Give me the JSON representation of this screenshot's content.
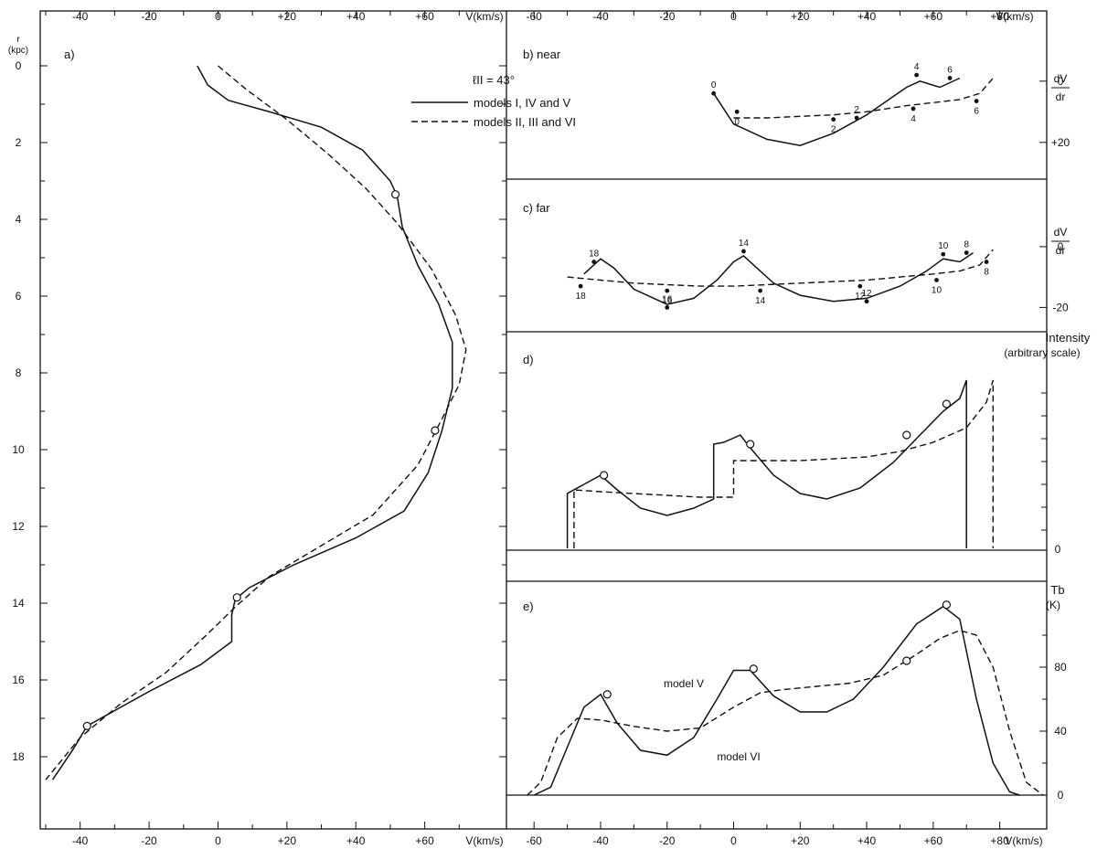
{
  "chart_data": [
    {
      "panel": "a",
      "type": "line",
      "label": "a)",
      "xlabel": "V(km/s)",
      "ylabel": "r",
      "ylabel_unit": "(kpc)",
      "xlim": [
        -50,
        80
      ],
      "ylim": [
        0,
        19
      ],
      "x_ticks_bottom": [
        "-40",
        "-20",
        "0",
        "+20",
        "+40",
        "+60"
      ],
      "x_ticks_top": [
        "-40",
        "-20",
        "0",
        "+20",
        "+40",
        "+60"
      ],
      "y_ticks": [
        "0",
        "2",
        "4",
        "6",
        "8",
        "10",
        "12",
        "14",
        "16",
        "18"
      ],
      "annotation_longitude": "ℓII = 43°",
      "legend": [
        {
          "label": "models I, IV and V",
          "style": "solid"
        },
        {
          "label": "models II, III and VI",
          "style": "dashed"
        }
      ],
      "series": [
        {
          "name": "models I, IV and V",
          "style": "solid",
          "points": [
            [
              -6,
              0.0
            ],
            [
              -3,
              0.5
            ],
            [
              3,
              0.9
            ],
            [
              15,
              1.2
            ],
            [
              30,
              1.6
            ],
            [
              42,
              2.2
            ],
            [
              50,
              3.0
            ],
            [
              52,
              3.4
            ],
            [
              53.5,
              4.2
            ],
            [
              58,
              5.2
            ],
            [
              64,
              6.2
            ],
            [
              68,
              7.2
            ],
            [
              68,
              8.4
            ],
            [
              65,
              9.5
            ],
            [
              61,
              10.6
            ],
            [
              54,
              11.6
            ],
            [
              40,
              12.3
            ],
            [
              22,
              13.0
            ],
            [
              9,
              13.6
            ],
            [
              5,
              13.9
            ],
            [
              4,
              14.3
            ],
            [
              4,
              15.0
            ],
            [
              -5,
              15.6
            ],
            [
              -20,
              16.3
            ],
            [
              -32,
              16.9
            ],
            [
              -38,
              17.2
            ],
            [
              -42,
              17.8
            ],
            [
              -48,
              18.6
            ]
          ]
        },
        {
          "name": "models II, III and VI",
          "style": "dashed",
          "points": [
            [
              0,
              0.0
            ],
            [
              8,
              0.6
            ],
            [
              20,
              1.4
            ],
            [
              32,
              2.3
            ],
            [
              43,
              3.2
            ],
            [
              52,
              4.1
            ],
            [
              62,
              5.3
            ],
            [
              69,
              6.5
            ],
            [
              72,
              7.4
            ],
            [
              70,
              8.3
            ],
            [
              65,
              9.2
            ],
            [
              58,
              10.4
            ],
            [
              45,
              11.7
            ],
            [
              30,
              12.5
            ],
            [
              15,
              13.3
            ],
            [
              5,
              14.1
            ],
            [
              -3,
              14.8
            ],
            [
              -15,
              15.8
            ],
            [
              -28,
              16.6
            ],
            [
              -40,
              17.5
            ],
            [
              -50,
              18.6
            ]
          ]
        }
      ],
      "markers": [
        [
          51.5,
          3.35
        ],
        [
          63,
          9.5
        ],
        [
          5.5,
          13.85
        ],
        [
          -38,
          17.2
        ]
      ]
    },
    {
      "panel": "b",
      "type": "line",
      "label": "b)  near",
      "ylabel": "dV/dr",
      "xlim": [
        -65,
        90
      ],
      "ylim": [
        -8,
        32
      ],
      "y_ticks_right": [
        "0",
        "+20"
      ],
      "series": [
        {
          "name": "models I, IV and V",
          "style": "solid",
          "points": [
            [
              -6,
              4
            ],
            [
              0,
              14
            ],
            [
              10,
              19
            ],
            [
              20,
              21
            ],
            [
              30,
              17
            ],
            [
              40,
              11
            ],
            [
              48,
              5
            ],
            [
              52,
              2
            ],
            [
              56,
              0
            ],
            [
              62,
              2
            ],
            [
              68,
              -1
            ]
          ],
          "labels": [
            {
              "text": "0",
              "x": -6,
              "y": 4
            },
            {
              "text": "2",
              "x": 37,
              "y": 12
            },
            {
              "text": "4",
              "x": 55,
              "y": -2
            },
            {
              "text": "6",
              "x": 65,
              "y": -1
            }
          ]
        },
        {
          "name": "models II, III and VI",
          "style": "dashed",
          "points": [
            [
              0,
              12
            ],
            [
              10,
              12
            ],
            [
              20,
              11.5
            ],
            [
              30,
              11
            ],
            [
              40,
              10
            ],
            [
              52,
              8
            ],
            [
              60,
              7
            ],
            [
              68,
              6
            ],
            [
              74,
              4
            ],
            [
              78,
              -1
            ]
          ],
          "labels": [
            {
              "text": "0",
              "x": 1,
              "y": 10
            },
            {
              "text": "2",
              "x": 30,
              "y": 12.5
            },
            {
              "text": "4",
              "x": 54,
              "y": 9
            },
            {
              "text": "6",
              "x": 73,
              "y": 6.5
            }
          ]
        }
      ]
    },
    {
      "panel": "c",
      "type": "line",
      "label": "c)  far",
      "ylabel": "dV/dr",
      "xlim": [
        -65,
        90
      ],
      "ylim": [
        -12,
        28
      ],
      "y_ticks_right": [
        "0",
        "-20"
      ],
      "series": [
        {
          "name": "models I, IV and V",
          "style": "solid",
          "points": [
            [
              -45,
              9
            ],
            [
              -40,
              4
            ],
            [
              -36,
              7
            ],
            [
              -30,
              14
            ],
            [
              -20,
              19
            ],
            [
              -12,
              17
            ],
            [
              -5,
              11
            ],
            [
              0,
              5
            ],
            [
              3,
              3
            ],
            [
              6,
              6
            ],
            [
              12,
              12
            ],
            [
              20,
              16
            ],
            [
              30,
              18
            ],
            [
              40,
              17
            ],
            [
              50,
              13
            ],
            [
              58,
              8
            ],
            [
              63,
              4
            ],
            [
              68,
              5
            ],
            [
              72,
              2
            ]
          ],
          "labels": [
            {
              "text": "18",
              "x": -42,
              "y": 5
            },
            {
              "text": "16",
              "x": -20,
              "y": 20
            },
            {
              "text": "14",
              "x": 3,
              "y": 1.5
            },
            {
              "text": "12",
              "x": 40,
              "y": 18
            },
            {
              "text": "10",
              "x": 63,
              "y": 2.5
            },
            {
              "text": "8",
              "x": 70,
              "y": 2
            }
          ]
        },
        {
          "name": "models II, III and VI",
          "style": "dashed",
          "points": [
            [
              -50,
              10
            ],
            [
              -40,
              11
            ],
            [
              -30,
              12
            ],
            [
              -20,
              12.5
            ],
            [
              -10,
              13
            ],
            [
              0,
              13
            ],
            [
              10,
              12.5
            ],
            [
              20,
              12
            ],
            [
              30,
              11.5
            ],
            [
              40,
              11
            ],
            [
              50,
              10
            ],
            [
              60,
              9
            ],
            [
              68,
              8
            ],
            [
              74,
              6
            ],
            [
              78,
              1
            ]
          ],
          "labels": [
            {
              "text": "18",
              "x": -46,
              "y": 13
            },
            {
              "text": "16",
              "x": -20,
              "y": 14.5
            },
            {
              "text": "14",
              "x": 8,
              "y": 14.5
            },
            {
              "text": "12",
              "x": 38,
              "y": 13
            },
            {
              "text": "10",
              "x": 61,
              "y": 11
            },
            {
              "text": "8",
              "x": 76,
              "y": 5
            }
          ]
        }
      ]
    },
    {
      "panel": "d",
      "type": "line",
      "label": "d)",
      "ylabel": "Intensity",
      "ylabel_unit": "(arbitrary scale)",
      "xlim": [
        -65,
        90
      ],
      "ylim": [
        0,
        100
      ],
      "y_ticks_right": [
        "0"
      ],
      "series": [
        {
          "name": "models I, IV and V",
          "style": "solid",
          "points": [
            [
              -50,
              0
            ],
            [
              -50,
              30
            ],
            [
              -45,
              35
            ],
            [
              -40,
              40
            ],
            [
              -35,
              32
            ],
            [
              -28,
              22
            ],
            [
              -20,
              18
            ],
            [
              -12,
              22
            ],
            [
              -6,
              27
            ],
            [
              -6,
              57
            ],
            [
              -3,
              58
            ],
            [
              2,
              62
            ],
            [
              5,
              55
            ],
            [
              12,
              40
            ],
            [
              20,
              30
            ],
            [
              28,
              27
            ],
            [
              38,
              33
            ],
            [
              48,
              47
            ],
            [
              56,
              62
            ],
            [
              63,
              75
            ],
            [
              68,
              82
            ],
            [
              70,
              92
            ],
            [
              70,
              0
            ]
          ]
        },
        {
          "name": "models II, III and VI",
          "style": "dashed",
          "points": [
            [
              -48,
              0
            ],
            [
              -48,
              32
            ],
            [
              -40,
              31
            ],
            [
              -30,
              30
            ],
            [
              -20,
              29
            ],
            [
              -10,
              28
            ],
            [
              0,
              28
            ],
            [
              0,
              48
            ],
            [
              10,
              48
            ],
            [
              20,
              48
            ],
            [
              30,
              49
            ],
            [
              40,
              50
            ],
            [
              50,
              53
            ],
            [
              60,
              58
            ],
            [
              70,
              66
            ],
            [
              76,
              80
            ],
            [
              78,
              92
            ],
            [
              78,
              0
            ]
          ]
        }
      ],
      "markers": [
        [
          -39,
          40
        ],
        [
          5,
          57
        ],
        [
          52,
          62
        ],
        [
          64,
          79
        ]
      ]
    },
    {
      "panel": "e",
      "type": "line",
      "label": "e)",
      "ylabel": "Tb",
      "ylabel_unit": "(K)",
      "xlim": [
        -65,
        90
      ],
      "ylim": [
        0,
        120
      ],
      "y_ticks_right": [
        "0",
        "40",
        "80"
      ],
      "series": [
        {
          "name": "model V",
          "style": "solid",
          "points": [
            [
              -60,
              0
            ],
            [
              -55,
              5
            ],
            [
              -50,
              30
            ],
            [
              -45,
              55
            ],
            [
              -40,
              63
            ],
            [
              -35,
              45
            ],
            [
              -28,
              28
            ],
            [
              -20,
              25
            ],
            [
              -12,
              36
            ],
            [
              -5,
              60
            ],
            [
              0,
              78
            ],
            [
              5,
              78
            ],
            [
              12,
              62
            ],
            [
              20,
              52
            ],
            [
              28,
              52
            ],
            [
              36,
              60
            ],
            [
              45,
              80
            ],
            [
              55,
              107
            ],
            [
              63,
              118
            ],
            [
              68,
              110
            ],
            [
              73,
              60
            ],
            [
              78,
              20
            ],
            [
              83,
              2
            ],
            [
              86,
              0
            ]
          ]
        },
        {
          "name": "model VI",
          "style": "dashed",
          "points": [
            [
              -62,
              0
            ],
            [
              -58,
              8
            ],
            [
              -53,
              36
            ],
            [
              -47,
              48
            ],
            [
              -40,
              47
            ],
            [
              -30,
              43
            ],
            [
              -20,
              40
            ],
            [
              -10,
              42
            ],
            [
              0,
              55
            ],
            [
              8,
              64
            ],
            [
              15,
              66
            ],
            [
              25,
              68
            ],
            [
              35,
              70
            ],
            [
              45,
              75
            ],
            [
              55,
              88
            ],
            [
              62,
              98
            ],
            [
              68,
              103
            ],
            [
              73,
              100
            ],
            [
              78,
              80
            ],
            [
              83,
              40
            ],
            [
              88,
              8
            ],
            [
              93,
              0
            ]
          ]
        }
      ],
      "markers": [
        [
          -38,
          63
        ],
        [
          6,
          79
        ],
        [
          52,
          84
        ],
        [
          64,
          119
        ]
      ],
      "annotations": [
        "model V",
        "model VI"
      ]
    },
    {
      "axes_shared": {
        "xlabel": "V(km/s)",
        "x_ticks_bottom": [
          "-60",
          "-40",
          "-20",
          "0",
          "+20",
          "+40",
          "+60",
          "+80"
        ],
        "x_ticks_top": [
          "-60",
          "-40",
          "-20",
          "0",
          "+20",
          "+40",
          "+60",
          "+80"
        ]
      }
    }
  ]
}
